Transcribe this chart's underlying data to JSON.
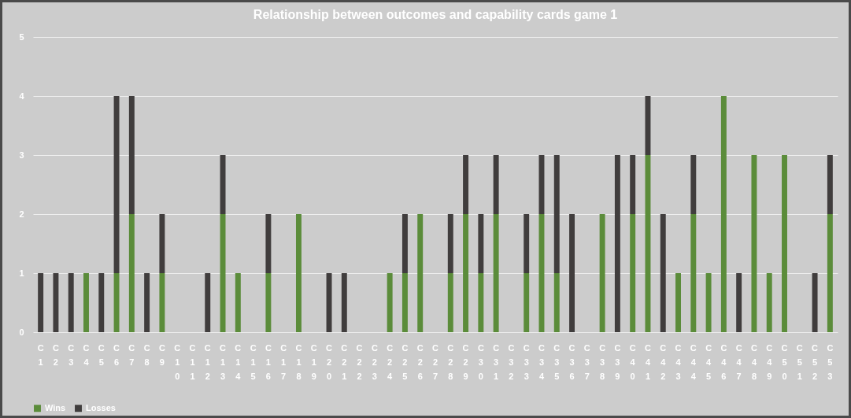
{
  "chart_data": {
    "type": "bar",
    "title": "Relationship between outcomes and capability cards game 1",
    "stacked": true,
    "categories": [
      "C1",
      "C2",
      "C3",
      "C4",
      "C5",
      "C6",
      "C7",
      "C8",
      "C9",
      "C10",
      "C11",
      "C12",
      "C13",
      "C14",
      "C15",
      "C16",
      "C17",
      "C18",
      "C19",
      "C20",
      "C21",
      "C22",
      "C23",
      "C24",
      "C25",
      "C26",
      "C27",
      "C28",
      "C29",
      "C30",
      "C31",
      "C32",
      "C33",
      "C34",
      "C35",
      "C36",
      "C37",
      "C38",
      "C39",
      "C40",
      "C41",
      "C42",
      "C43",
      "C44",
      "C45",
      "C46",
      "C47",
      "C48",
      "C49",
      "C50",
      "C51",
      "C52",
      "C53"
    ],
    "series": [
      {
        "name": "Wins",
        "color": "#5b8c3a",
        "values": [
          0,
          0,
          0,
          1,
          0,
          1,
          2,
          0,
          1,
          0,
          0,
          0,
          2,
          1,
          0,
          1,
          0,
          2,
          0,
          0,
          0,
          0,
          0,
          1,
          1,
          2,
          0,
          1,
          2,
          1,
          2,
          0,
          1,
          2,
          1,
          0,
          0,
          2,
          0,
          2,
          3,
          0,
          1,
          2,
          1,
          4,
          0,
          3,
          1,
          3,
          0,
          0,
          2
        ]
      },
      {
        "name": "Losses",
        "color": "#403d3d",
        "values": [
          1,
          1,
          1,
          0,
          1,
          3,
          2,
          1,
          1,
          0,
          0,
          1,
          1,
          0,
          0,
          1,
          0,
          0,
          0,
          1,
          1,
          0,
          0,
          0,
          1,
          0,
          0,
          1,
          1,
          1,
          1,
          0,
          1,
          1,
          2,
          2,
          0,
          0,
          3,
          1,
          1,
          2,
          0,
          1,
          0,
          0,
          1,
          0,
          0,
          0,
          0,
          1,
          1
        ]
      }
    ],
    "ylim": [
      0,
      5
    ],
    "yticks": [
      0,
      1,
      2,
      3,
      4,
      5
    ],
    "grid": "y",
    "legend": "bottom"
  }
}
